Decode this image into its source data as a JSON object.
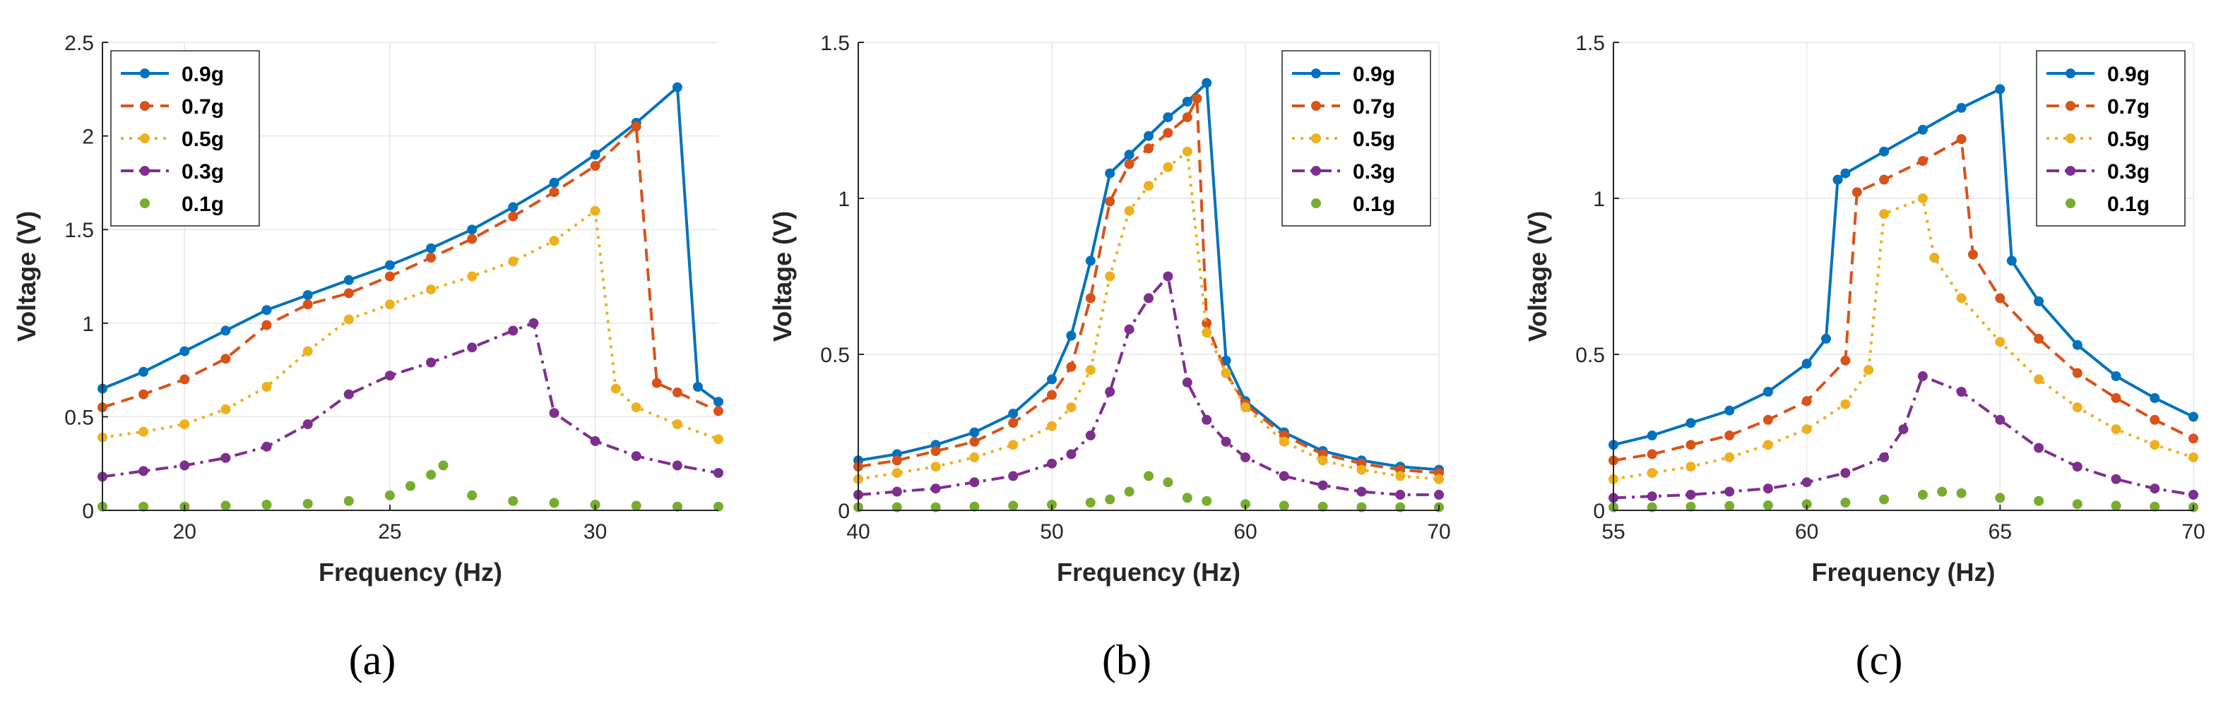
{
  "figure_labels": [
    "(a)",
    "(b)",
    "(c)"
  ],
  "chart_data": [
    {
      "type": "line",
      "label": "(a)",
      "xlabel": "Frequency (Hz)",
      "ylabel": "Voltage (V)",
      "xlim": [
        18,
        33
      ],
      "ylim": [
        0,
        2.5
      ],
      "xticks": [
        20,
        25,
        30
      ],
      "yticks": [
        0,
        0.5,
        1,
        1.5,
        2,
        2.5
      ],
      "xtick_labels": [
        "20",
        "25",
        "30"
      ],
      "ytick_labels": [
        "0",
        "0.5",
        "1",
        "1.5",
        "2",
        "2.5"
      ],
      "grid": true,
      "legend_position": "top-left",
      "series": [
        {
          "name": "0.9g",
          "color": "#0072BD",
          "dash": "solid",
          "x": [
            18,
            19,
            20,
            21,
            22,
            23,
            24,
            25,
            26,
            27,
            28,
            29,
            30,
            31,
            32,
            32.5,
            33
          ],
          "y": [
            0.65,
            0.74,
            0.85,
            0.96,
            1.07,
            1.15,
            1.23,
            1.31,
            1.4,
            1.5,
            1.62,
            1.75,
            1.9,
            2.07,
            2.26,
            0.66,
            0.58
          ]
        },
        {
          "name": "0.7g",
          "color": "#D95319",
          "dash": "dashed",
          "x": [
            18,
            19,
            20,
            21,
            22,
            23,
            24,
            25,
            26,
            27,
            28,
            29,
            30,
            31,
            31.5,
            32,
            33
          ],
          "y": [
            0.55,
            0.62,
            0.7,
            0.81,
            0.99,
            1.1,
            1.16,
            1.25,
            1.35,
            1.45,
            1.57,
            1.7,
            1.84,
            2.05,
            0.68,
            0.63,
            0.53
          ]
        },
        {
          "name": "0.5g",
          "color": "#EDB120",
          "dash": "dotted",
          "x": [
            18,
            19,
            20,
            21,
            22,
            23,
            24,
            25,
            26,
            27,
            28,
            29,
            30,
            30.5,
            31,
            32,
            33
          ],
          "y": [
            0.39,
            0.42,
            0.46,
            0.54,
            0.66,
            0.85,
            1.02,
            1.1,
            1.18,
            1.25,
            1.33,
            1.44,
            1.6,
            0.65,
            0.55,
            0.46,
            0.38
          ]
        },
        {
          "name": "0.3g",
          "color": "#7E2F8E",
          "dash": "dashdot",
          "x": [
            18,
            19,
            20,
            21,
            22,
            23,
            24,
            25,
            26,
            27,
            28,
            28.5,
            29,
            30,
            31,
            32,
            33
          ],
          "y": [
            0.18,
            0.21,
            0.24,
            0.28,
            0.34,
            0.46,
            0.62,
            0.72,
            0.79,
            0.87,
            0.96,
            1.0,
            0.52,
            0.37,
            0.29,
            0.24,
            0.2
          ]
        },
        {
          "name": "0.1g",
          "color": "#77AC30",
          "dash": "none",
          "x": [
            18,
            19,
            20,
            21,
            22,
            23,
            24,
            25,
            25.5,
            26,
            26.3,
            27,
            28,
            29,
            30,
            31,
            32,
            33
          ],
          "y": [
            0.02,
            0.02,
            0.02,
            0.025,
            0.03,
            0.035,
            0.05,
            0.08,
            0.13,
            0.19,
            0.24,
            0.08,
            0.05,
            0.04,
            0.03,
            0.025,
            0.02,
            0.02
          ]
        }
      ]
    },
    {
      "type": "line",
      "label": "(b)",
      "xlabel": "Frequency (Hz)",
      "ylabel": "Voltage (V)",
      "xlim": [
        40,
        70
      ],
      "ylim": [
        0,
        1.5
      ],
      "xticks": [
        40,
        50,
        60,
        70
      ],
      "yticks": [
        0,
        0.5,
        1,
        1.5
      ],
      "xtick_labels": [
        "40",
        "50",
        "60",
        "70"
      ],
      "ytick_labels": [
        "0",
        "0.5",
        "1",
        "1.5"
      ],
      "grid": true,
      "legend_position": "top-right",
      "series": [
        {
          "name": "0.9g",
          "color": "#0072BD",
          "dash": "solid",
          "x": [
            40,
            42,
            44,
            46,
            48,
            50,
            51,
            52,
            53,
            54,
            55,
            56,
            57,
            58,
            59,
            60,
            62,
            64,
            66,
            68,
            70
          ],
          "y": [
            0.16,
            0.18,
            0.21,
            0.25,
            0.31,
            0.42,
            0.56,
            0.8,
            1.08,
            1.14,
            1.2,
            1.26,
            1.31,
            1.37,
            0.48,
            0.35,
            0.25,
            0.19,
            0.16,
            0.14,
            0.13
          ]
        },
        {
          "name": "0.7g",
          "color": "#D95319",
          "dash": "dashed",
          "x": [
            40,
            42,
            44,
            46,
            48,
            50,
            51,
            52,
            53,
            54,
            55,
            56,
            57,
            57.5,
            58,
            59,
            60,
            62,
            64,
            66,
            68,
            70
          ],
          "y": [
            0.14,
            0.16,
            0.19,
            0.22,
            0.28,
            0.37,
            0.46,
            0.68,
            0.99,
            1.11,
            1.16,
            1.21,
            1.26,
            1.32,
            0.6,
            0.44,
            0.34,
            0.24,
            0.18,
            0.15,
            0.13,
            0.12
          ]
        },
        {
          "name": "0.5g",
          "color": "#EDB120",
          "dash": "dotted",
          "x": [
            40,
            42,
            44,
            46,
            48,
            50,
            51,
            52,
            53,
            54,
            55,
            56,
            57,
            58,
            59,
            60,
            62,
            64,
            66,
            68,
            70
          ],
          "y": [
            0.1,
            0.12,
            0.14,
            0.17,
            0.21,
            0.27,
            0.33,
            0.45,
            0.75,
            0.96,
            1.04,
            1.1,
            1.15,
            0.57,
            0.44,
            0.33,
            0.22,
            0.16,
            0.13,
            0.11,
            0.1
          ]
        },
        {
          "name": "0.3g",
          "color": "#7E2F8E",
          "dash": "dashdot",
          "x": [
            40,
            42,
            44,
            46,
            48,
            50,
            51,
            52,
            53,
            54,
            55,
            56,
            57,
            58,
            59,
            60,
            62,
            64,
            66,
            68,
            70
          ],
          "y": [
            0.05,
            0.06,
            0.07,
            0.09,
            0.11,
            0.15,
            0.18,
            0.24,
            0.38,
            0.58,
            0.68,
            0.75,
            0.41,
            0.29,
            0.22,
            0.17,
            0.11,
            0.08,
            0.06,
            0.05,
            0.05
          ]
        },
        {
          "name": "0.1g",
          "color": "#77AC30",
          "dash": "none",
          "x": [
            40,
            42,
            44,
            46,
            48,
            50,
            52,
            53,
            54,
            55,
            56,
            57,
            58,
            60,
            62,
            64,
            66,
            68,
            70
          ],
          "y": [
            0.01,
            0.01,
            0.01,
            0.012,
            0.015,
            0.018,
            0.025,
            0.035,
            0.06,
            0.11,
            0.09,
            0.04,
            0.03,
            0.02,
            0.015,
            0.012,
            0.01,
            0.01,
            0.01
          ]
        }
      ]
    },
    {
      "type": "line",
      "label": "(c)",
      "xlabel": "Frequency (Hz)",
      "ylabel": "Voltage (V)",
      "xlim": [
        55,
        70
      ],
      "ylim": [
        0,
        1.5
      ],
      "xticks": [
        55,
        60,
        65,
        70
      ],
      "yticks": [
        0,
        0.5,
        1,
        1.5
      ],
      "xtick_labels": [
        "55",
        "60",
        "65",
        "70"
      ],
      "ytick_labels": [
        "0",
        "0.5",
        "1",
        "1.5"
      ],
      "grid": true,
      "legend_position": "top-right",
      "series": [
        {
          "name": "0.9g",
          "color": "#0072BD",
          "dash": "solid",
          "x": [
            55,
            56,
            57,
            58,
            59,
            60,
            60.5,
            60.8,
            61,
            62,
            63,
            64,
            65,
            65.3,
            66,
            67,
            68,
            69,
            70
          ],
          "y": [
            0.21,
            0.24,
            0.28,
            0.32,
            0.38,
            0.47,
            0.55,
            1.06,
            1.08,
            1.15,
            1.22,
            1.29,
            1.35,
            0.8,
            0.67,
            0.53,
            0.43,
            0.36,
            0.3
          ]
        },
        {
          "name": "0.7g",
          "color": "#D95319",
          "dash": "dashed",
          "x": [
            55,
            56,
            57,
            58,
            59,
            60,
            61,
            61.3,
            62,
            63,
            64,
            64.3,
            65,
            66,
            67,
            68,
            69,
            70
          ],
          "y": [
            0.16,
            0.18,
            0.21,
            0.24,
            0.29,
            0.35,
            0.48,
            1.02,
            1.06,
            1.12,
            1.19,
            0.82,
            0.68,
            0.55,
            0.44,
            0.36,
            0.29,
            0.23
          ]
        },
        {
          "name": "0.5g",
          "color": "#EDB120",
          "dash": "dotted",
          "x": [
            55,
            56,
            57,
            58,
            59,
            60,
            61,
            61.6,
            62,
            63,
            63.3,
            64,
            65,
            66,
            67,
            68,
            69,
            70
          ],
          "y": [
            0.1,
            0.12,
            0.14,
            0.17,
            0.21,
            0.26,
            0.34,
            0.45,
            0.95,
            1.0,
            0.81,
            0.68,
            0.54,
            0.42,
            0.33,
            0.26,
            0.21,
            0.17
          ]
        },
        {
          "name": "0.3g",
          "color": "#7E2F8E",
          "dash": "dashdot",
          "x": [
            55,
            56,
            57,
            58,
            59,
            60,
            61,
            62,
            62.5,
            63,
            64,
            65,
            66,
            67,
            68,
            69,
            70
          ],
          "y": [
            0.04,
            0.045,
            0.05,
            0.06,
            0.07,
            0.09,
            0.12,
            0.17,
            0.26,
            0.43,
            0.38,
            0.29,
            0.2,
            0.14,
            0.1,
            0.07,
            0.05
          ]
        },
        {
          "name": "0.1g",
          "color": "#77AC30",
          "dash": "none",
          "x": [
            55,
            56,
            57,
            58,
            59,
            60,
            61,
            62,
            63,
            63.5,
            64,
            65,
            66,
            67,
            68,
            69,
            70
          ],
          "y": [
            0.01,
            0.01,
            0.012,
            0.014,
            0.016,
            0.02,
            0.025,
            0.035,
            0.05,
            0.06,
            0.055,
            0.04,
            0.03,
            0.02,
            0.015,
            0.012,
            0.01
          ]
        }
      ]
    }
  ]
}
